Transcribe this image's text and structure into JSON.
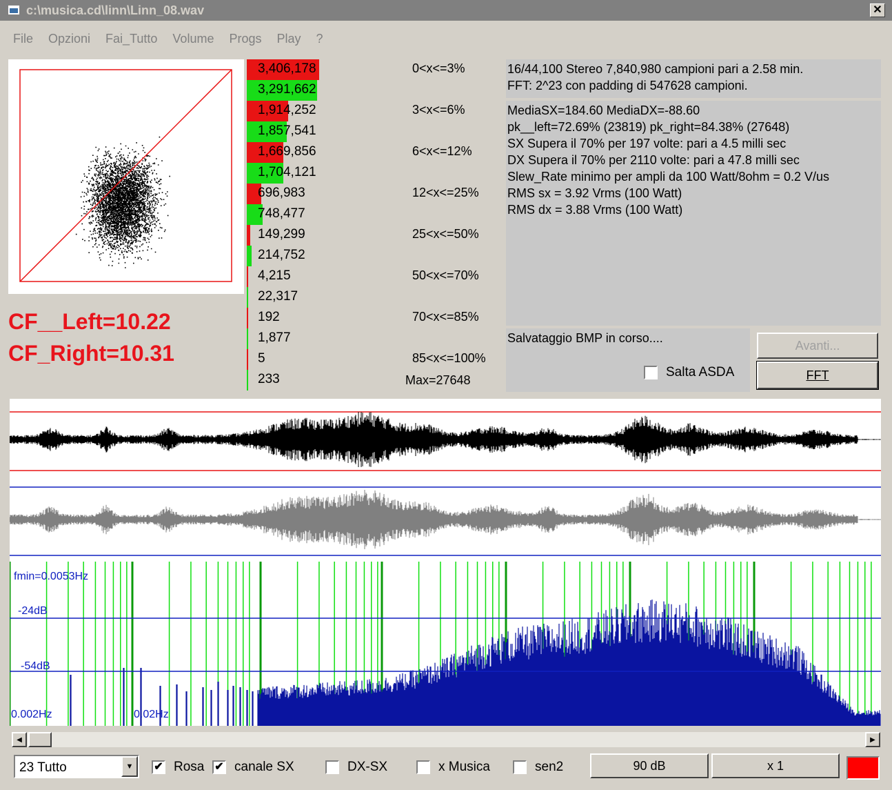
{
  "window": {
    "title": "c:\\musica.cd\\linn\\Linn_08.wav",
    "close_glyph": "✕"
  },
  "menu": [
    "File",
    "Opzioni",
    "Fai_Tutto",
    "Volume",
    "Progs",
    "Play",
    "?"
  ],
  "crest_factor": {
    "left": "CF__Left=10.22",
    "right": "CF_Right=10.31"
  },
  "histogram": {
    "rows": [
      {
        "value": "3,406,178",
        "channel": "left",
        "fraction": 0.3
      },
      {
        "value": "3,291,662",
        "channel": "right",
        "fraction": 0.29
      },
      {
        "value": "1,914,252",
        "channel": "left",
        "fraction": 0.17
      },
      {
        "value": "1,857,541",
        "channel": "right",
        "fraction": 0.165
      },
      {
        "value": "1,669,856",
        "channel": "left",
        "fraction": 0.15
      },
      {
        "value": "1,704,121",
        "channel": "right",
        "fraction": 0.15
      },
      {
        "value": "696,983",
        "channel": "left",
        "fraction": 0.06
      },
      {
        "value": "748,477",
        "channel": "right",
        "fraction": 0.066
      },
      {
        "value": "149,299",
        "channel": "left",
        "fraction": 0.013
      },
      {
        "value": "214,752",
        "channel": "right",
        "fraction": 0.019
      },
      {
        "value": "4,215",
        "channel": "left",
        "fraction": 0.0006
      },
      {
        "value": "22,317",
        "channel": "right",
        "fraction": 0.002
      },
      {
        "value": "192",
        "channel": "left",
        "fraction": 2e-05
      },
      {
        "value": "1,877",
        "channel": "right",
        "fraction": 0.0002
      },
      {
        "value": "5",
        "channel": "left",
        "fraction": 0
      },
      {
        "value": "233",
        "channel": "right",
        "fraction": 0
      }
    ],
    "ranges": [
      "0<x<=3%",
      "3<x<=6%",
      "6<x<=12%",
      "12<x<=25%",
      "25<x<=50%",
      "50<x<=70%",
      "70<x<=85%",
      "85<x<=100%"
    ],
    "max_label": "Max=27648",
    "colors": {
      "left": "#e81414",
      "right": "#18dc18"
    }
  },
  "info": {
    "header_lines": [
      "16/44,100 Stereo 7,840,980 campioni pari a 2.58 min.",
      "FFT: 2^23 con padding di 547628 campioni."
    ],
    "body_lines": [
      "MediaSX=184.60  MediaDX=-88.60",
      "pk__left=72.69% (23819)  pk_right=84.38% (27648)",
      "SX Supera il 70% per 197 volte: pari a 4.5 milli sec",
      "DX Supera il 70% per 2110 volte: pari a 47.8 milli sec",
      "Slew_Rate minimo per ampli da 100 Watt/8ohm = 0.2 V/us",
      "RMS sx = 3.92 Vrms (100 Watt)",
      "RMS dx = 3.88 Vrms (100 Watt)"
    ],
    "status": "Salvataggio BMP in corso....",
    "salta_asda": {
      "label": "Salta ASDA",
      "checked": false
    }
  },
  "buttons": {
    "avanti": "Avanti...",
    "fft": "FFT"
  },
  "spectrum": {
    "labels": [
      "fmin=0.0053Hz",
      "-24dB",
      "-54dB",
      "0.002Hz",
      "0.02Hz"
    ],
    "colors": {
      "bars": "#0a14a0",
      "grid": "#10e010",
      "levels": "#1020c0"
    }
  },
  "bottom": {
    "preset": "23 Tutto",
    "checks": [
      {
        "label": "Rosa",
        "checked": true
      },
      {
        "label": "canale SX",
        "checked": true
      },
      {
        "label": "DX-SX",
        "checked": false
      },
      {
        "label": "x Musica",
        "checked": false
      },
      {
        "label": "sen2",
        "checked": false
      }
    ],
    "db_button": "90 dB",
    "zoom_button": "x 1",
    "swatch_color": "#ff0000"
  }
}
